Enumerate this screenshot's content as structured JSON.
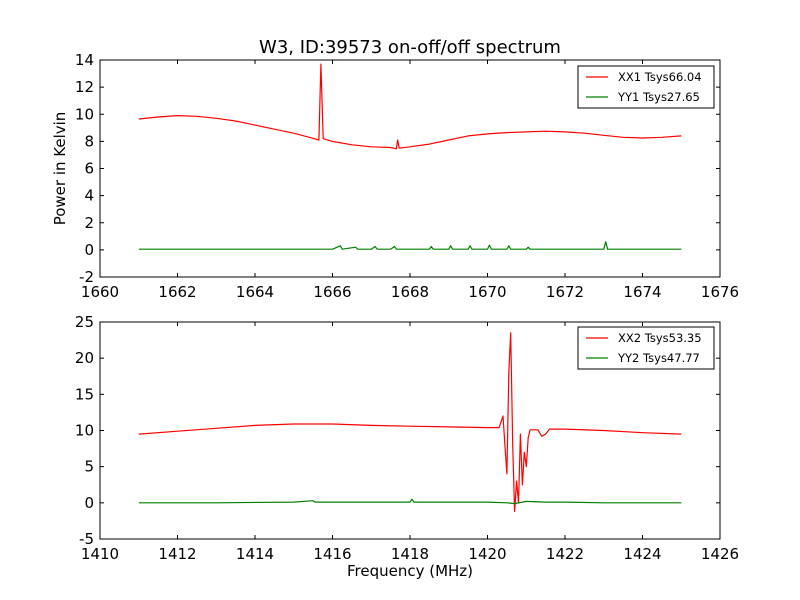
{
  "figure": {
    "title": "W3, ID:39573 on-off/off spectrum"
  },
  "chart_data": [
    {
      "type": "line",
      "title": "W3, ID:39573 on-off/off spectrum",
      "xlabel": "",
      "ylabel": "Power in Kelvin",
      "xlim": [
        1660,
        1676
      ],
      "ylim": [
        -2,
        14
      ],
      "xticks": [
        1660,
        1662,
        1664,
        1666,
        1668,
        1670,
        1672,
        1674,
        1676
      ],
      "yticks": [
        -2,
        0,
        2,
        4,
        6,
        8,
        10,
        12,
        14
      ],
      "grid": false,
      "legend_position": "top-right",
      "series": [
        {
          "name": "XX1 Tsys66.04",
          "color": "#ff0000",
          "points": [
            [
              1661.0,
              9.65
            ],
            [
              1661.5,
              9.8
            ],
            [
              1662.0,
              9.9
            ],
            [
              1662.5,
              9.85
            ],
            [
              1663.0,
              9.7
            ],
            [
              1663.5,
              9.5
            ],
            [
              1664.0,
              9.2
            ],
            [
              1664.5,
              8.9
            ],
            [
              1665.0,
              8.6
            ],
            [
              1665.4,
              8.3
            ],
            [
              1665.65,
              8.1
            ],
            [
              1665.7,
              13.7
            ],
            [
              1665.76,
              8.2
            ],
            [
              1666.0,
              8.0
            ],
            [
              1666.5,
              7.75
            ],
            [
              1667.0,
              7.6
            ],
            [
              1667.5,
              7.55
            ],
            [
              1667.65,
              7.45
            ],
            [
              1667.68,
              8.1
            ],
            [
              1667.72,
              7.5
            ],
            [
              1668.0,
              7.6
            ],
            [
              1668.5,
              7.8
            ],
            [
              1669.0,
              8.1
            ],
            [
              1669.5,
              8.4
            ],
            [
              1670.0,
              8.55
            ],
            [
              1670.5,
              8.65
            ],
            [
              1671.0,
              8.7
            ],
            [
              1671.5,
              8.75
            ],
            [
              1672.0,
              8.7
            ],
            [
              1672.5,
              8.6
            ],
            [
              1673.0,
              8.45
            ],
            [
              1673.5,
              8.3
            ],
            [
              1674.0,
              8.25
            ],
            [
              1674.5,
              8.3
            ],
            [
              1675.0,
              8.4
            ]
          ]
        },
        {
          "name": "YY1 Tsys27.65",
          "color": "#008000",
          "points": [
            [
              1661.0,
              0.05
            ],
            [
              1662.0,
              0.05
            ],
            [
              1663.0,
              0.05
            ],
            [
              1664.0,
              0.05
            ],
            [
              1665.0,
              0.05
            ],
            [
              1666.0,
              0.05
            ],
            [
              1666.2,
              0.3
            ],
            [
              1666.25,
              0.05
            ],
            [
              1666.6,
              0.2
            ],
            [
              1666.65,
              0.05
            ],
            [
              1667.0,
              0.05
            ],
            [
              1667.1,
              0.25
            ],
            [
              1667.15,
              0.05
            ],
            [
              1667.5,
              0.05
            ],
            [
              1667.6,
              0.25
            ],
            [
              1667.65,
              0.05
            ],
            [
              1668.5,
              0.05
            ],
            [
              1668.55,
              0.25
            ],
            [
              1668.6,
              0.05
            ],
            [
              1669.0,
              0.05
            ],
            [
              1669.05,
              0.3
            ],
            [
              1669.1,
              0.05
            ],
            [
              1669.5,
              0.05
            ],
            [
              1669.55,
              0.3
            ],
            [
              1669.6,
              0.05
            ],
            [
              1670.0,
              0.05
            ],
            [
              1670.05,
              0.35
            ],
            [
              1670.1,
              0.05
            ],
            [
              1670.5,
              0.05
            ],
            [
              1670.55,
              0.3
            ],
            [
              1670.6,
              0.05
            ],
            [
              1671.0,
              0.05
            ],
            [
              1671.05,
              0.2
            ],
            [
              1671.1,
              0.05
            ],
            [
              1672.0,
              0.05
            ],
            [
              1673.0,
              0.05
            ],
            [
              1673.05,
              0.6
            ],
            [
              1673.1,
              0.05
            ],
            [
              1674.0,
              0.05
            ],
            [
              1675.0,
              0.05
            ]
          ]
        }
      ]
    },
    {
      "type": "line",
      "title": "",
      "xlabel": "Frequency (MHz)",
      "ylabel": "",
      "xlim": [
        1410,
        1426
      ],
      "ylim": [
        -5,
        25
      ],
      "xticks": [
        1410,
        1412,
        1414,
        1416,
        1418,
        1420,
        1422,
        1424,
        1426
      ],
      "yticks": [
        -5,
        0,
        5,
        10,
        15,
        20,
        25
      ],
      "grid": false,
      "legend_position": "top-right",
      "series": [
        {
          "name": "XX2 Tsys53.35",
          "color": "#ff0000",
          "points": [
            [
              1411.0,
              9.5
            ],
            [
              1412.0,
              9.9
            ],
            [
              1413.0,
              10.3
            ],
            [
              1414.0,
              10.7
            ],
            [
              1415.0,
              10.9
            ],
            [
              1416.0,
              10.9
            ],
            [
              1417.0,
              10.7
            ],
            [
              1418.0,
              10.6
            ],
            [
              1419.0,
              10.5
            ],
            [
              1420.0,
              10.4
            ],
            [
              1420.3,
              10.4
            ],
            [
              1420.4,
              12.0
            ],
            [
              1420.45,
              8.0
            ],
            [
              1420.5,
              4.0
            ],
            [
              1420.55,
              18.0
            ],
            [
              1420.6,
              23.5
            ],
            [
              1420.65,
              8.0
            ],
            [
              1420.7,
              -1.2
            ],
            [
              1420.75,
              3.0
            ],
            [
              1420.8,
              0.0
            ],
            [
              1420.85,
              9.5
            ],
            [
              1420.9,
              2.5
            ],
            [
              1420.95,
              7.0
            ],
            [
              1421.0,
              5.0
            ],
            [
              1421.05,
              9.0
            ],
            [
              1421.1,
              10.1
            ],
            [
              1421.3,
              10.1
            ],
            [
              1421.4,
              9.2
            ],
            [
              1421.5,
              9.5
            ],
            [
              1421.6,
              10.2
            ],
            [
              1422.0,
              10.2
            ],
            [
              1423.0,
              10.0
            ],
            [
              1424.0,
              9.7
            ],
            [
              1425.0,
              9.5
            ]
          ]
        },
        {
          "name": "YY2 Tsys47.77",
          "color": "#008000",
          "points": [
            [
              1411.0,
              0.0
            ],
            [
              1413.0,
              0.0
            ],
            [
              1415.0,
              0.1
            ],
            [
              1415.5,
              0.3
            ],
            [
              1415.55,
              0.1
            ],
            [
              1416.0,
              0.1
            ],
            [
              1417.0,
              0.1
            ],
            [
              1418.0,
              0.1
            ],
            [
              1418.05,
              0.5
            ],
            [
              1418.1,
              0.1
            ],
            [
              1419.0,
              0.1
            ],
            [
              1420.0,
              0.1
            ],
            [
              1420.5,
              0.0
            ],
            [
              1420.7,
              -0.1
            ],
            [
              1420.9,
              0.1
            ],
            [
              1421.0,
              0.2
            ],
            [
              1421.5,
              0.1
            ],
            [
              1422.0,
              0.1
            ],
            [
              1423.0,
              0.0
            ],
            [
              1424.0,
              0.0
            ],
            [
              1425.0,
              0.0
            ]
          ]
        }
      ]
    }
  ]
}
